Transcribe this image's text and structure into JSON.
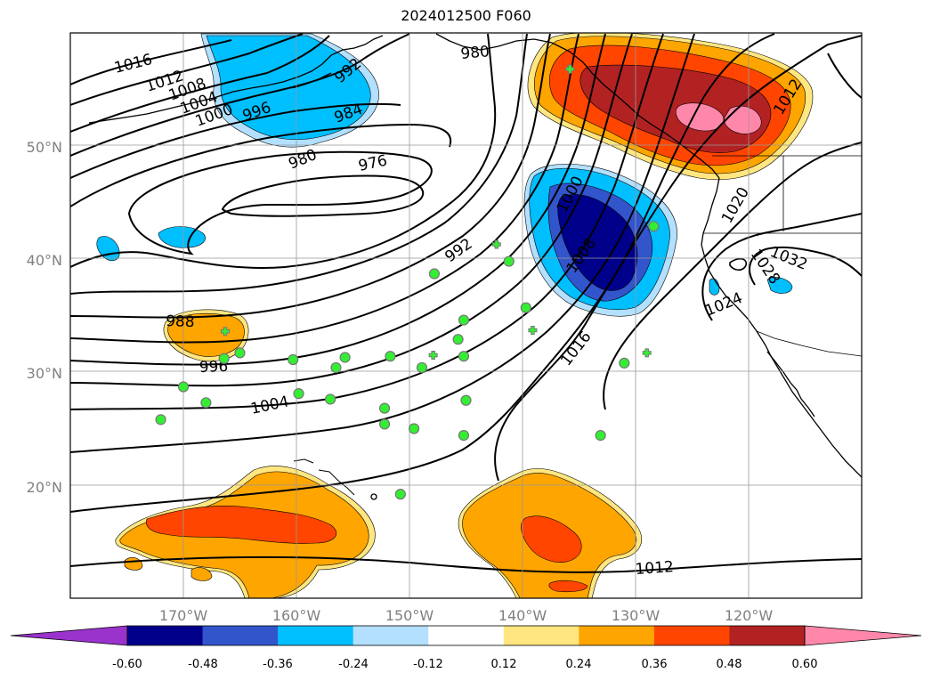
{
  "title": "2024012500 F060",
  "map": {
    "lon_range": [
      -180,
      -110
    ],
    "lat_range": [
      10,
      60
    ],
    "grid": true,
    "lat_labels": [
      "20°N",
      "30°N",
      "40°N",
      "50°N"
    ],
    "lon_labels": [
      "170°W",
      "160°W",
      "150°W",
      "140°W",
      "130°W",
      "120°W"
    ],
    "contour_field": "sea level pressure (isobars)",
    "isobar_labels": [
      "1016",
      "1012",
      "1008",
      "1004",
      "1000",
      "996",
      "992",
      "984",
      "980",
      "980",
      "976",
      "988",
      "996",
      "1004",
      "992",
      "1000",
      "1008",
      "1016",
      "1012",
      "1020",
      "1024",
      "1028",
      "1032",
      "1012"
    ],
    "anomaly_colors": [
      "#9933cc",
      "#00008b",
      "#3355cc",
      "#00bfff",
      "#b3e0ff",
      "#ffffff",
      "#ffe680",
      "#ffa500",
      "#ff4500",
      "#b22222",
      "#ff88aa"
    ],
    "circle_marker_color": "#33ee33",
    "plus_marker_color": "#33ee33"
  },
  "colorbar": {
    "ticks": [
      "-0.60",
      "-0.48",
      "-0.36",
      "-0.24",
      "-0.12",
      "0.12",
      "0.24",
      "0.36",
      "0.48",
      "0.60"
    ],
    "colors": [
      "#9933cc",
      "#00008b",
      "#3355cc",
      "#00bfff",
      "#b3e0ff",
      "#ffffff",
      "#ffe680",
      "#ffa500",
      "#ff4500",
      "#b22222",
      "#ff88aa"
    ],
    "extend": "both"
  },
  "markers": {
    "circles": [
      {
        "lon": -172.0,
        "lat": 25.8
      },
      {
        "lon": -170.0,
        "lat": 28.7
      },
      {
        "lon": -168.0,
        "lat": 27.3
      },
      {
        "lon": -166.4,
        "lat": 31.2
      },
      {
        "lon": -165.0,
        "lat": 31.7
      },
      {
        "lon": -160.3,
        "lat": 31.1
      },
      {
        "lon": -159.8,
        "lat": 28.1
      },
      {
        "lon": -157.0,
        "lat": 27.6
      },
      {
        "lon": -156.5,
        "lat": 30.4
      },
      {
        "lon": -155.7,
        "lat": 31.3
      },
      {
        "lon": -152.2,
        "lat": 26.8
      },
      {
        "lon": -152.2,
        "lat": 25.4
      },
      {
        "lon": -151.7,
        "lat": 31.4
      },
      {
        "lon": -149.6,
        "lat": 25.0
      },
      {
        "lon": -150.8,
        "lat": 19.2
      },
      {
        "lon": -148.9,
        "lat": 30.4
      },
      {
        "lon": -147.8,
        "lat": 38.7
      },
      {
        "lon": -145.7,
        "lat": 32.9
      },
      {
        "lon": -145.2,
        "lat": 34.6
      },
      {
        "lon": -145.2,
        "lat": 31.4
      },
      {
        "lon": -145.0,
        "lat": 27.5
      },
      {
        "lon": -145.2,
        "lat": 24.4
      },
      {
        "lon": -141.2,
        "lat": 39.8
      },
      {
        "lon": -139.7,
        "lat": 35.7
      },
      {
        "lon": -133.1,
        "lat": 24.4
      },
      {
        "lon": -131.0,
        "lat": 30.8
      },
      {
        "lon": -128.4,
        "lat": 42.9
      }
    ],
    "pluses": [
      {
        "lon": -166.3,
        "lat": 33.6
      },
      {
        "lon": -147.9,
        "lat": 31.5
      },
      {
        "lon": -142.3,
        "lat": 41.3
      },
      {
        "lon": -139.1,
        "lat": 33.7
      },
      {
        "lon": -135.8,
        "lat": 56.8
      },
      {
        "lon": -129.0,
        "lat": 31.7
      }
    ]
  }
}
